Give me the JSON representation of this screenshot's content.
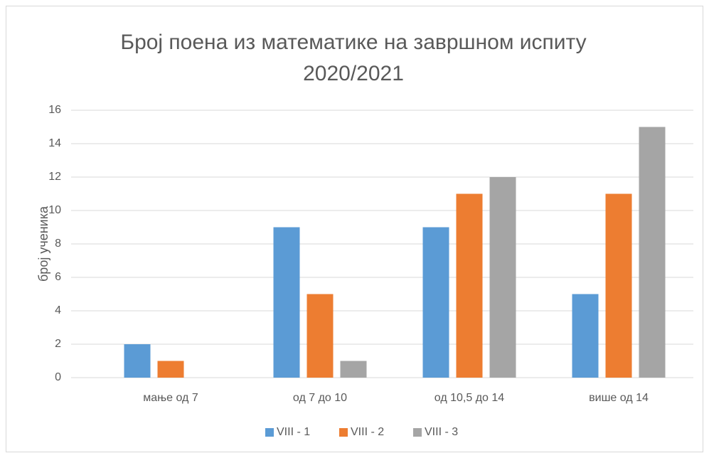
{
  "chart_data": {
    "type": "bar",
    "title": "Број поена из математике на завршном испиту 2020/2021",
    "y_label": "број ученика",
    "categories": [
      "мање од 7",
      "од 7 до 10",
      "од 10,5 до 14",
      "више од 14"
    ],
    "series": [
      {
        "name": "VIII - 1",
        "color": "#5b9bd5",
        "values": [
          2,
          9,
          9,
          5
        ]
      },
      {
        "name": "VIII - 2",
        "color": "#ed7d31",
        "values": [
          1,
          5,
          11,
          11
        ]
      },
      {
        "name": "VIII - 3",
        "color": "#a5a5a5",
        "values": [
          0,
          1,
          12,
          15
        ]
      }
    ],
    "ylim": [
      0,
      16
    ],
    "yticks": [
      0,
      2,
      4,
      6,
      8,
      10,
      12,
      14,
      16
    ],
    "grid": true,
    "legend": "bottom"
  }
}
